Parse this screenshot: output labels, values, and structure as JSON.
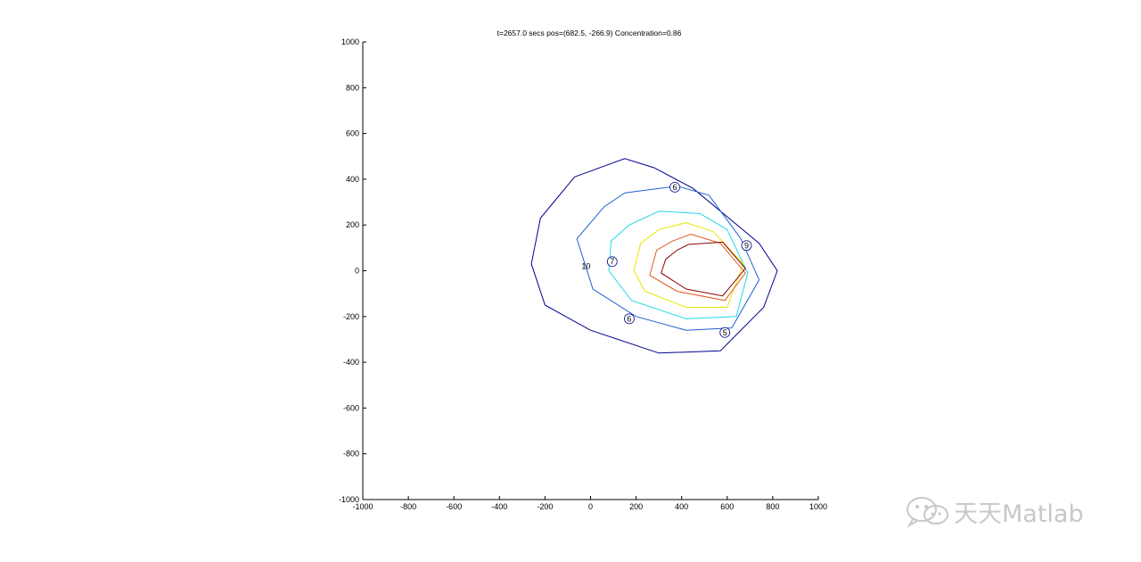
{
  "chart_data": {
    "type": "contour",
    "title": "t=2657.0 secs pos=(682.5, -266.9)  Concentration=0.86",
    "xlim": [
      -1000,
      1000
    ],
    "ylim": [
      -1000,
      1000
    ],
    "x_ticks": [
      -1000,
      -800,
      -600,
      -400,
      -200,
      0,
      200,
      400,
      600,
      800,
      1000
    ],
    "y_ticks": [
      -1000,
      -800,
      -600,
      -400,
      -200,
      0,
      200,
      400,
      600,
      800,
      1000
    ],
    "grid": false,
    "contours": [
      {
        "level": "10",
        "color": "#00008f",
        "points": [
          [
            -70,
            410
          ],
          [
            150,
            490
          ],
          [
            280,
            450
          ],
          [
            450,
            360
          ],
          [
            740,
            120
          ],
          [
            820,
            0
          ],
          [
            760,
            -160
          ],
          [
            570,
            -350
          ],
          [
            300,
            -360
          ],
          [
            0,
            -260
          ],
          [
            -200,
            -150
          ],
          [
            -260,
            30
          ],
          [
            -220,
            230
          ]
        ]
      },
      {
        "level": "6",
        "color": "#1e5fd0",
        "points": [
          [
            150,
            340
          ],
          [
            380,
            370
          ],
          [
            520,
            330
          ],
          [
            660,
            140
          ],
          [
            740,
            -40
          ],
          [
            620,
            -250
          ],
          [
            420,
            -260
          ],
          [
            200,
            -200
          ],
          [
            10,
            -80
          ],
          [
            -60,
            140
          ],
          [
            60,
            280
          ]
        ]
      },
      {
        "level": "7",
        "color": "#20d8e8",
        "points": [
          [
            300,
            260
          ],
          [
            480,
            250
          ],
          [
            600,
            180
          ],
          [
            690,
            -10
          ],
          [
            640,
            -200
          ],
          [
            420,
            -210
          ],
          [
            180,
            -130
          ],
          [
            80,
            0
          ],
          [
            90,
            130
          ],
          [
            170,
            200
          ]
        ]
      },
      {
        "level": "",
        "color": "#e8e800",
        "points": [
          [
            420,
            210
          ],
          [
            540,
            170
          ],
          [
            670,
            30
          ],
          [
            600,
            -160
          ],
          [
            420,
            -160
          ],
          [
            240,
            -90
          ],
          [
            190,
            0
          ],
          [
            220,
            120
          ],
          [
            300,
            180
          ]
        ]
      },
      {
        "level": "",
        "color": "#e05a20",
        "points": [
          [
            440,
            160
          ],
          [
            570,
            120
          ],
          [
            680,
            -10
          ],
          [
            590,
            -130
          ],
          [
            380,
            -90
          ],
          [
            260,
            -20
          ],
          [
            290,
            90
          ],
          [
            360,
            130
          ]
        ]
      },
      {
        "level": "",
        "color": "#8b0000",
        "points": [
          [
            430,
            115
          ],
          [
            580,
            125
          ],
          [
            680,
            10
          ],
          [
            580,
            -110
          ],
          [
            420,
            -80
          ],
          [
            310,
            -10
          ],
          [
            330,
            50
          ],
          [
            380,
            90
          ]
        ]
      }
    ],
    "labels": [
      {
        "text": "6",
        "x": 370,
        "y": 365
      },
      {
        "text": "9",
        "x": 685,
        "y": 110
      },
      {
        "text": "10",
        "x": -20,
        "y": 20
      },
      {
        "text": "7",
        "x": 95,
        "y": 40
      },
      {
        "text": "6",
        "x": 170,
        "y": -210
      },
      {
        "text": "5",
        "x": 590,
        "y": -270
      }
    ]
  },
  "watermark": {
    "text": "天天Matlab",
    "icon": "wechat-icon",
    "color": "#c8c8c8"
  }
}
